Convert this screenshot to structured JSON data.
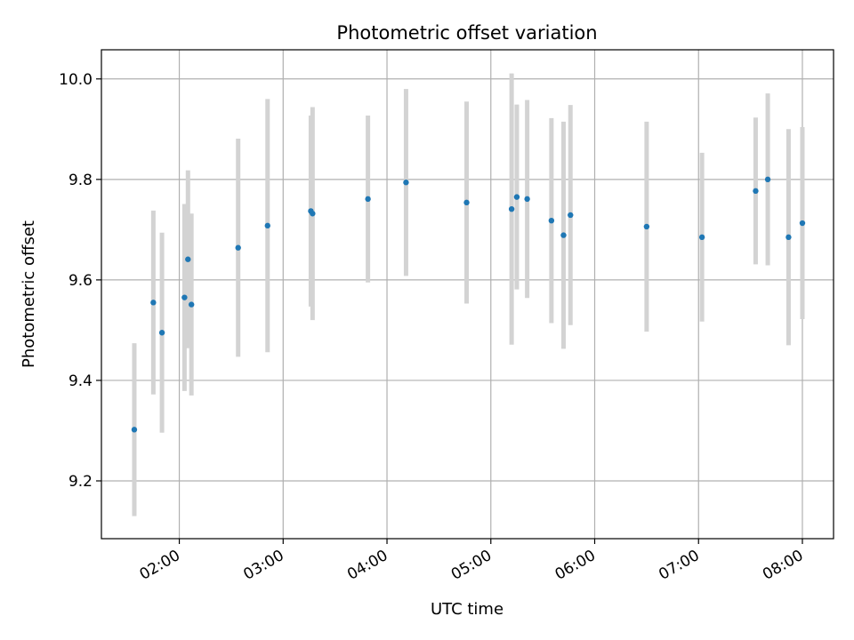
{
  "chart_data": {
    "type": "scatter",
    "title": "Photometric offset variation",
    "xlabel": "UTC time",
    "ylabel": "Photometric offset",
    "xlim": [
      "01:15",
      "08:18"
    ],
    "ylim": [
      9.085,
      10.058
    ],
    "x_ticks": [
      "02:00",
      "03:00",
      "04:00",
      "05:00",
      "06:00",
      "07:00",
      "08:00"
    ],
    "y_ticks": [
      "9.2",
      "9.4",
      "9.6",
      "9.8",
      "10.0"
    ],
    "grid": true,
    "legend": "none",
    "colors": {
      "points": "#1f77b4",
      "errorbars": "#d3d3d3",
      "grid": "#b0b0b0"
    },
    "points": [
      {
        "x": "01:34",
        "y": 9.302,
        "yerr": 0.172
      },
      {
        "x": "01:45",
        "y": 9.555,
        "yerr": 0.183
      },
      {
        "x": "01:50",
        "y": 9.495,
        "yerr": 0.199
      },
      {
        "x": "02:03",
        "y": 9.565,
        "yerr": 0.186
      },
      {
        "x": "02:05",
        "y": 9.641,
        "yerr": 0.177
      },
      {
        "x": "02:07",
        "y": 9.551,
        "yerr": 0.181
      },
      {
        "x": "02:34",
        "y": 9.664,
        "yerr": 0.217
      },
      {
        "x": "02:51",
        "y": 9.708,
        "yerr": 0.252
      },
      {
        "x": "03:16",
        "y": 9.737,
        "yerr": 0.19
      },
      {
        "x": "03:17",
        "y": 9.732,
        "yerr": 0.212
      },
      {
        "x": "03:49",
        "y": 9.761,
        "yerr": 0.166
      },
      {
        "x": "04:11",
        "y": 9.794,
        "yerr": 0.186
      },
      {
        "x": "04:46",
        "y": 9.754,
        "yerr": 0.201
      },
      {
        "x": "05:12",
        "y": 9.741,
        "yerr": 0.27
      },
      {
        "x": "05:15",
        "y": 9.765,
        "yerr": 0.184
      },
      {
        "x": "05:21",
        "y": 9.761,
        "yerr": 0.197
      },
      {
        "x": "05:35",
        "y": 9.718,
        "yerr": 0.204
      },
      {
        "x": "05:42",
        "y": 9.689,
        "yerr": 0.226
      },
      {
        "x": "05:46",
        "y": 9.729,
        "yerr": 0.219
      },
      {
        "x": "06:30",
        "y": 9.706,
        "yerr": 0.209
      },
      {
        "x": "07:02",
        "y": 9.685,
        "yerr": 0.168
      },
      {
        "x": "07:33",
        "y": 9.777,
        "yerr": 0.146
      },
      {
        "x": "07:40",
        "y": 9.8,
        "yerr": 0.171
      },
      {
        "x": "07:52",
        "y": 9.685,
        "yerr": 0.215
      },
      {
        "x": "08:00",
        "y": 9.713,
        "yerr": 0.191
      }
    ]
  }
}
